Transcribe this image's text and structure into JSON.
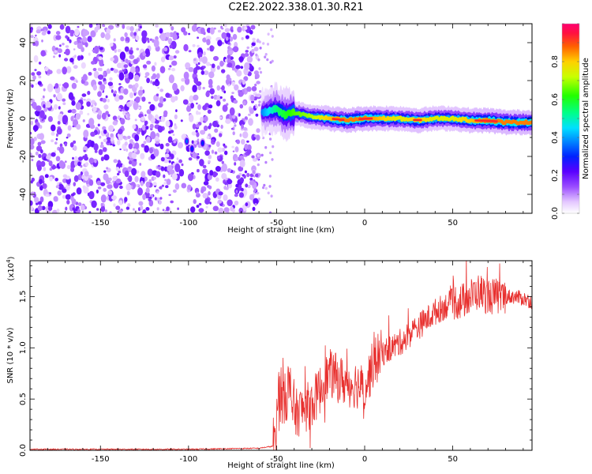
{
  "title": "C2E2.2022.338.01.30.R21",
  "chart_data": [
    {
      "type": "heatmap",
      "xlabel": "Height of straight line (km)",
      "ylabel": "Frequency (Hz)",
      "xlim": [
        -190,
        95
      ],
      "ylim": [
        -50,
        50
      ],
      "xticks": [
        -150,
        -100,
        -50,
        0,
        50
      ],
      "yticks": [
        -40,
        -20,
        0,
        20,
        40
      ],
      "colorbar": {
        "label": "Normalized spectral amplitude",
        "range": [
          0,
          1
        ],
        "ticks": [
          "0.0",
          "0.2",
          "0.4",
          "0.6",
          "0.8"
        ],
        "colormap": "rainbow"
      },
      "noise_region_x": [
        -190,
        -60
      ],
      "signal_ridge": {
        "x": [
          -58,
          -50,
          -45,
          -40,
          -30,
          -20,
          -10,
          0,
          10,
          20,
          30,
          40,
          50,
          60,
          70,
          80,
          95
        ],
        "frequency": [
          3,
          5,
          2,
          3,
          1,
          0,
          -1,
          0,
          0,
          0,
          -1,
          0,
          0,
          -1,
          -1,
          -2,
          -2
        ],
        "amplitude": [
          0.35,
          0.5,
          0.55,
          0.6,
          0.65,
          0.75,
          0.8,
          0.8,
          0.75,
          0.7,
          0.75,
          0.7,
          0.7,
          0.75,
          0.8,
          0.8,
          0.8
        ]
      },
      "isolated_blobs": [
        {
          "x": -101,
          "frequency": -12,
          "amplitude": 0.35
        },
        {
          "x": -98,
          "frequency": -16,
          "amplitude": 0.3
        },
        {
          "x": -92,
          "frequency": -13,
          "amplitude": 0.3
        }
      ]
    },
    {
      "type": "line",
      "xlabel": "Height of straight line (km)",
      "ylabel": "SNR (10 * v/v)",
      "y_multiplier": "(x10",
      "y_multiplier_exp": "4",
      "y_multiplier_close": ")",
      "xlim": [
        -190,
        95
      ],
      "ylim": [
        0,
        1.85
      ],
      "xticks": [
        -150,
        -100,
        -50,
        0,
        50
      ],
      "yticks": [
        "0.0",
        "0.5",
        "1.0",
        "1.5"
      ],
      "color": "#e8312f",
      "series": [
        {
          "x": [
            -190,
            -150,
            -100,
            -60,
            -52,
            -50,
            -48,
            -45,
            -42,
            -40,
            -35,
            -30,
            -25,
            -20,
            -15,
            -10,
            -5,
            0,
            5,
            10,
            15,
            20,
            30,
            40,
            50,
            55,
            60,
            65,
            70,
            75,
            80,
            85,
            90,
            95
          ],
          "y": [
            0.01,
            0.01,
            0.01,
            0.02,
            0.04,
            0.3,
            0.55,
            0.6,
            0.55,
            0.35,
            0.4,
            0.45,
            0.6,
            0.75,
            0.7,
            0.65,
            0.65,
            0.6,
            0.85,
            0.95,
            1.0,
            1.05,
            1.2,
            1.35,
            1.45,
            1.45,
            1.5,
            1.55,
            1.5,
            1.5,
            1.5,
            1.5,
            1.48,
            1.45
          ]
        }
      ]
    }
  ]
}
